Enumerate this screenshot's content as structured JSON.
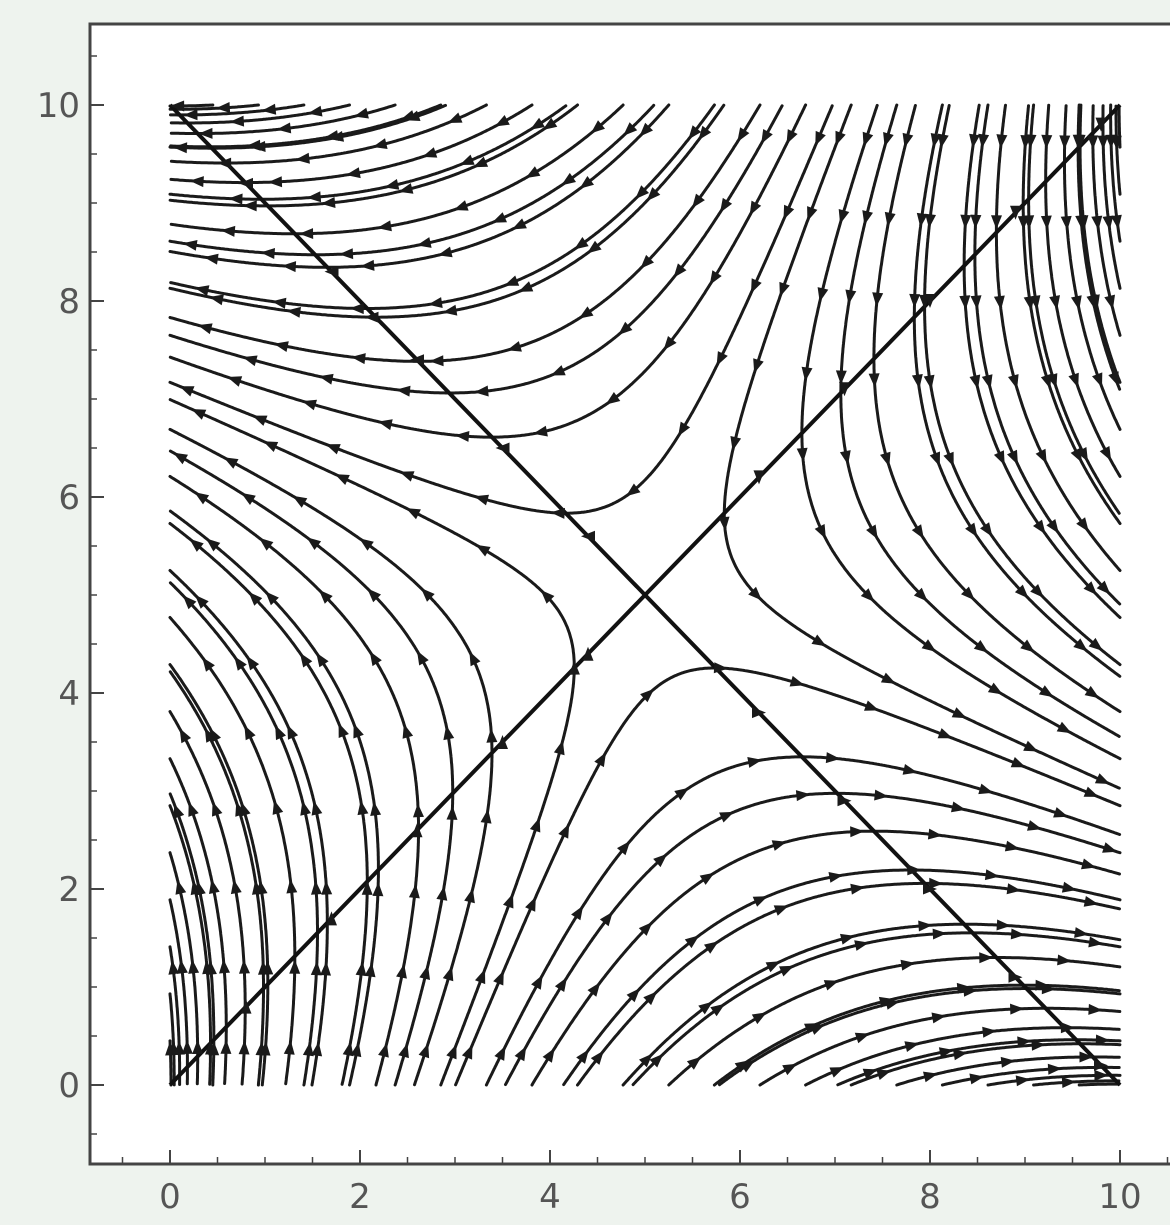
{
  "chart_data": {
    "type": "streamplot",
    "title": "",
    "xlabel": "",
    "ylabel": "",
    "xlim": [
      -0.8,
      10.5
    ],
    "ylim": [
      -0.8,
      10.8
    ],
    "x_ticks": [
      "0",
      "2",
      "4",
      "6",
      "8",
      "10"
    ],
    "y_ticks": [
      "0",
      "2",
      "4",
      "6",
      "8",
      "10"
    ],
    "domain": {
      "x": [
        0,
        10
      ],
      "y": [
        0,
        10
      ]
    },
    "saddle_point": [
      5,
      5
    ],
    "vector_field": {
      "dx": "x - y",
      "dy": "10 - x - y"
    },
    "separatrices": [
      {
        "name": "",
        "from": [
          0,
          0
        ],
        "to": [
          10,
          10
        ]
      },
      {
        "name": "",
        "from": [
          0,
          10
        ],
        "to": [
          10,
          0
        ]
      }
    ],
    "grid": false,
    "legend": "none"
  },
  "colors": {
    "background": "#eef3ee",
    "plot_area": "#ffffff",
    "stream": "#1a1a1a",
    "axis": "#444444"
  }
}
